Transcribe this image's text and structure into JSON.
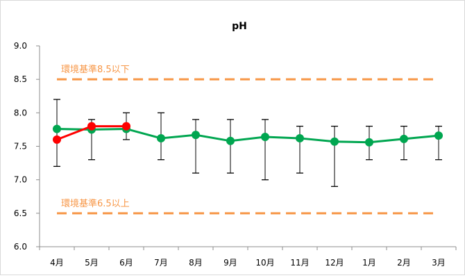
{
  "chart_data": {
    "type": "line",
    "title": "pH",
    "categories": [
      "4月",
      "5月",
      "6月",
      "7月",
      "8月",
      "9月",
      "10月",
      "11月",
      "12月",
      "1月",
      "2月",
      "3月"
    ],
    "ylim": [
      6.0,
      9.0
    ],
    "yticks": [
      "6.0",
      "6.5",
      "7.0",
      "7.5",
      "8.0",
      "8.5",
      "9.0"
    ],
    "grid": false,
    "series": [
      {
        "kind": "green-average-line",
        "color": "#00a650",
        "values": [
          7.76,
          7.75,
          7.76,
          7.62,
          7.67,
          7.58,
          7.64,
          7.62,
          7.57,
          7.56,
          7.61,
          7.66
        ],
        "error_max": [
          8.2,
          7.9,
          8.0,
          8.0,
          7.9,
          7.9,
          7.9,
          7.8,
          7.8,
          7.8,
          7.8,
          7.8
        ],
        "error_min": [
          7.2,
          7.3,
          7.6,
          7.3,
          7.1,
          7.1,
          7.0,
          7.1,
          6.9,
          7.3,
          7.3,
          7.3
        ]
      },
      {
        "kind": "red-line",
        "color": "#ff0000",
        "values": [
          7.6,
          7.8,
          7.8,
          null,
          null,
          null,
          null,
          null,
          null,
          null,
          null,
          null
        ]
      }
    ],
    "reference_lines": [
      {
        "value": 8.5,
        "label": "環境基準8.5以下",
        "color": "#f79646"
      },
      {
        "value": 6.5,
        "label": "環境基準6.5以上",
        "color": "#f79646"
      }
    ]
  }
}
